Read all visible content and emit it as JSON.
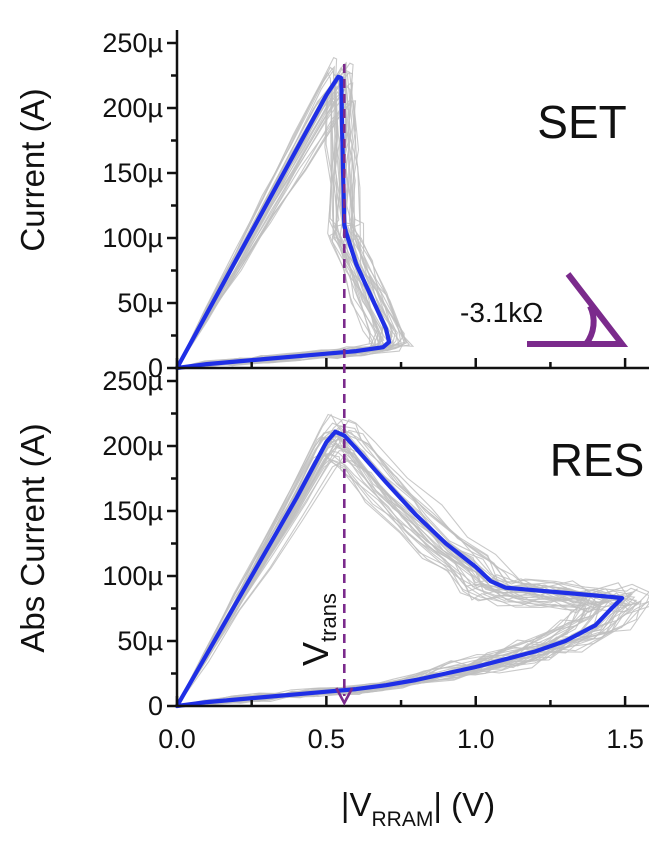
{
  "colors": {
    "highlight": "#1f2fe6",
    "cycles": "#bfbfbf",
    "annotation": "#7b2a8c",
    "axis": "#111111"
  },
  "chart_data": {
    "type": "line",
    "shared_x": {
      "label_prefix": "|V",
      "label_sub": "RRAM",
      "label_suffix": "| (V)",
      "xlim": [
        0.0,
        1.58
      ],
      "ticks": [
        0.0,
        0.5,
        1.0,
        1.5
      ],
      "tick_labels": [
        "0.0",
        "0.5",
        "1.0",
        "1.5"
      ]
    },
    "v_trans": {
      "x": 0.56,
      "label_main": "V",
      "label_sub": "trans"
    },
    "panels": [
      {
        "id": "set",
        "panel_label": "SET",
        "ylabel": "Current (A)",
        "ylim": [
          0,
          260
        ],
        "y_unit": "µA",
        "yticks": [
          0,
          50,
          100,
          150,
          200,
          250
        ],
        "ytick_labels": [
          "0",
          "50µ",
          "100µ",
          "150µ",
          "200µ",
          "250µ"
        ],
        "slope_annotation": "-3.1kΩ",
        "highlight_series": {
          "name": "SET representative cycle",
          "x": [
            0.0,
            0.1,
            0.2,
            0.3,
            0.4,
            0.5,
            0.54,
            0.55,
            0.553,
            0.556,
            0.56,
            0.565,
            0.6,
            0.65,
            0.7,
            0.71,
            0.69,
            0.6,
            0.5,
            0.4,
            0.3,
            0.2,
            0.1,
            0.0
          ],
          "y": [
            0,
            42,
            84,
            126,
            168,
            210,
            224,
            223,
            180,
            150,
            110,
            105,
            80,
            55,
            30,
            20,
            16,
            13,
            11,
            9,
            7,
            5,
            3,
            0
          ]
        },
        "gray_series_count": 34
      },
      {
        "id": "res",
        "panel_label": "RES",
        "ylabel": "Abs Current (A)",
        "ylim": [
          0,
          260
        ],
        "y_unit": "µA",
        "yticks": [
          0,
          50,
          100,
          150,
          200,
          250
        ],
        "ytick_labels": [
          "0",
          "50µ",
          "100µ",
          "150µ",
          "200µ",
          "250µ"
        ],
        "highlight_series": {
          "name": "RES representative cycle",
          "x": [
            0.0,
            0.1,
            0.2,
            0.3,
            0.4,
            0.5,
            0.53,
            0.56,
            0.6,
            0.7,
            0.8,
            0.9,
            1.0,
            1.05,
            1.1,
            1.2,
            1.3,
            1.4,
            1.45,
            1.49,
            1.45,
            1.4,
            1.3,
            1.2,
            1.1,
            1.0,
            0.9,
            0.8,
            0.7,
            0.6,
            0.5,
            0.4,
            0.3,
            0.2,
            0.1,
            0.0
          ],
          "y": [
            0,
            40,
            80,
            120,
            160,
            203,
            211,
            208,
            198,
            172,
            147,
            125,
            107,
            96,
            91,
            89,
            87,
            85,
            84,
            83,
            74,
            62,
            50,
            42,
            36,
            30,
            25,
            20,
            16,
            13,
            11,
            9,
            7,
            5,
            3,
            0
          ]
        },
        "gray_series_count": 34
      }
    ]
  }
}
